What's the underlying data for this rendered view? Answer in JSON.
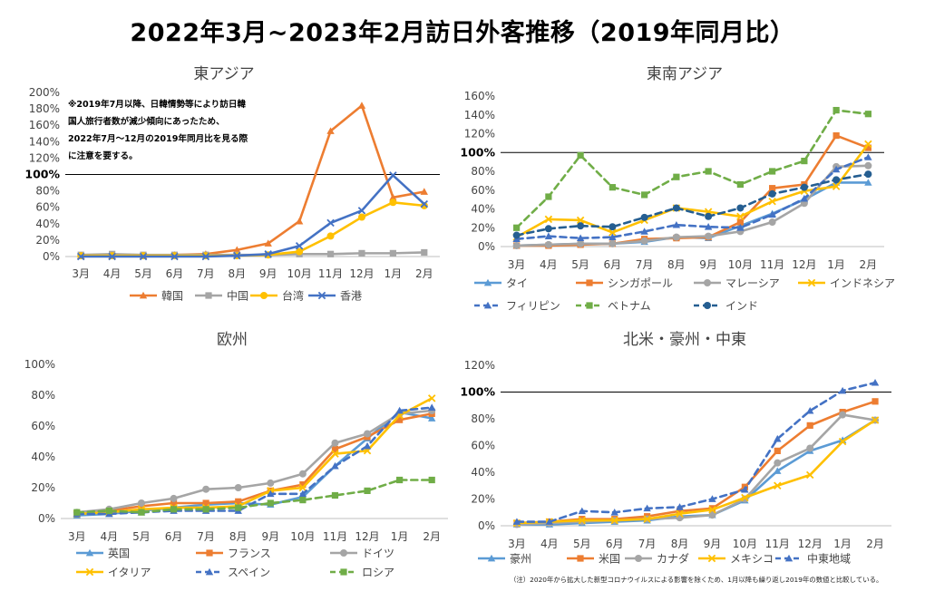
{
  "title": "2022年3月~2023年2月訪日外客推移（2019年同月比）",
  "footnote": "（注）2020年から拡大した新型コロナウイルスによる影響を除くため、1月以降も繰り返し2019年の数値と比較している。",
  "chart_data": [
    {
      "type": "line",
      "title": "東アジア",
      "categories": [
        "3月",
        "4月",
        "5月",
        "6月",
        "7月",
        "8月",
        "9月",
        "10月",
        "11月",
        "12月",
        "1月",
        "2月"
      ],
      "ylim": [
        0,
        200
      ],
      "yticks": [
        0,
        20,
        40,
        60,
        80,
        100,
        120,
        140,
        160,
        180,
        200
      ],
      "tick_labels": [
        "0%",
        "20%",
        "40%",
        "60%",
        "80%",
        "100%",
        "120%",
        "140%",
        "160%",
        "180%",
        "200%"
      ],
      "reference_line": 100,
      "legend_position": "bottom",
      "note_lines": [
        "※2019年7月以降、日韓情勢等により訪日韓",
        "国人旅行者数が減少傾向にあったため、",
        "2022年7月～12月の2019年同月比を見る際",
        "に注意を要する。"
      ],
      "series": [
        {
          "name": "韓国",
          "color": "#ED7D31",
          "marker": "triangle",
          "dash": false,
          "values": [
            1,
            1,
            1,
            2,
            3,
            8,
            16,
            43,
            153,
            184,
            72,
            79
          ]
        },
        {
          "name": "中国",
          "color": "#A5A5A5",
          "marker": "square",
          "dash": false,
          "values": [
            2,
            3,
            2,
            2,
            2,
            2,
            2,
            3,
            3,
            4,
            4,
            5
          ]
        },
        {
          "name": "台湾",
          "color": "#FFC000",
          "marker": "circle",
          "dash": false,
          "values": [
            1,
            1,
            1,
            1,
            1,
            1,
            2,
            6,
            25,
            48,
            66,
            62
          ]
        },
        {
          "name": "香港",
          "color": "#4472C4",
          "marker": "x",
          "dash": false,
          "values": [
            0,
            0,
            0,
            0,
            0,
            1,
            3,
            13,
            41,
            56,
            99,
            64
          ]
        }
      ]
    },
    {
      "type": "line",
      "title": "東南アジア",
      "categories": [
        "3月",
        "4月",
        "5月",
        "6月",
        "7月",
        "8月",
        "9月",
        "10月",
        "11月",
        "12月",
        "1月",
        "2月"
      ],
      "ylim": [
        0,
        160
      ],
      "yticks": [
        0,
        20,
        40,
        60,
        80,
        100,
        120,
        140,
        160
      ],
      "tick_labels": [
        "0%",
        "20%",
        "40%",
        "60%",
        "80%",
        "100%",
        "120%",
        "140%",
        "160%"
      ],
      "reference_line": 100,
      "legend_position": "bottom",
      "series": [
        {
          "name": "タイ",
          "color": "#5B9BD5",
          "marker": "triangle",
          "dash": false,
          "values": [
            1,
            2,
            3,
            3,
            5,
            10,
            9,
            22,
            35,
            50,
            68,
            68
          ]
        },
        {
          "name": "シンガポール",
          "color": "#ED7D31",
          "marker": "square",
          "dash": false,
          "values": [
            1,
            1,
            2,
            3,
            8,
            9,
            10,
            26,
            62,
            66,
            118,
            105
          ]
        },
        {
          "name": "マレーシア",
          "color": "#A5A5A5",
          "marker": "circle",
          "dash": false,
          "values": [
            1,
            2,
            3,
            3,
            6,
            10,
            11,
            16,
            26,
            46,
            85,
            86
          ]
        },
        {
          "name": "インドネシア",
          "color": "#FFC000",
          "marker": "x",
          "dash": false,
          "values": [
            10,
            29,
            28,
            15,
            28,
            41,
            37,
            32,
            48,
            59,
            64,
            109
          ]
        },
        {
          "name": "フィリピン",
          "color": "#4472C4",
          "marker": "triangle",
          "dash": true,
          "values": [
            8,
            11,
            9,
            10,
            16,
            23,
            21,
            20,
            34,
            51,
            82,
            95
          ]
        },
        {
          "name": "ベトナム",
          "color": "#70AD47",
          "marker": "square",
          "dash": true,
          "values": [
            20,
            53,
            97,
            63,
            55,
            74,
            80,
            66,
            80,
            91,
            145,
            141
          ]
        },
        {
          "name": "インド",
          "color": "#255E91",
          "marker": "circle",
          "dash": true,
          "values": [
            12,
            19,
            22,
            21,
            31,
            41,
            32,
            41,
            56,
            63,
            71,
            77
          ]
        }
      ]
    },
    {
      "type": "line",
      "title": "欧州",
      "categories": [
        "3月",
        "4月",
        "5月",
        "6月",
        "7月",
        "8月",
        "9月",
        "10月",
        "11月",
        "12月",
        "1月",
        "2月"
      ],
      "ylim": [
        0,
        100
      ],
      "yticks": [
        0,
        20,
        40,
        60,
        80,
        100
      ],
      "tick_labels": [
        "0%",
        "20%",
        "40%",
        "60%",
        "80%",
        "100%"
      ],
      "legend_position": "bottom",
      "series": [
        {
          "name": "英国",
          "color": "#5B9BD5",
          "marker": "triangle",
          "dash": false,
          "values": [
            2,
            3,
            5,
            7,
            9,
            10,
            9,
            14,
            34,
            52,
            69,
            65
          ]
        },
        {
          "name": "フランス",
          "color": "#ED7D31",
          "marker": "square",
          "dash": false,
          "values": [
            3,
            5,
            8,
            10,
            10,
            11,
            18,
            22,
            45,
            53,
            64,
            68
          ]
        },
        {
          "name": "ドイツ",
          "color": "#A5A5A5",
          "marker": "circle",
          "dash": false,
          "values": [
            4,
            6,
            10,
            13,
            19,
            20,
            23,
            29,
            49,
            55,
            68,
            70
          ]
        },
        {
          "name": "イタリア",
          "color": "#FFC000",
          "marker": "x",
          "dash": false,
          "values": [
            3,
            4,
            6,
            7,
            7,
            8,
            18,
            20,
            42,
            44,
            67,
            78
          ]
        },
        {
          "name": "スペイン",
          "color": "#4472C4",
          "marker": "triangle",
          "dash": true,
          "values": [
            3,
            3,
            4,
            5,
            5,
            5,
            16,
            16,
            34,
            47,
            70,
            72
          ]
        },
        {
          "name": "ロシア",
          "color": "#70AD47",
          "marker": "square",
          "dash": true,
          "values": [
            4,
            5,
            4,
            6,
            6,
            7,
            10,
            12,
            15,
            18,
            25,
            25
          ]
        }
      ]
    },
    {
      "type": "line",
      "title": "北米・豪州・中東",
      "categories": [
        "3月",
        "4月",
        "5月",
        "6月",
        "7月",
        "8月",
        "9月",
        "10月",
        "11月",
        "12月",
        "1月",
        "2月"
      ],
      "ylim": [
        0,
        120
      ],
      "yticks": [
        0,
        20,
        40,
        60,
        80,
        100,
        120
      ],
      "tick_labels": [
        "0%",
        "20%",
        "40%",
        "60%",
        "80%",
        "100%",
        "120%"
      ],
      "reference_line": 100,
      "legend_position": "bottom",
      "series": [
        {
          "name": "豪州",
          "color": "#5B9BD5",
          "marker": "triangle",
          "dash": false,
          "values": [
            1,
            1,
            2,
            3,
            4,
            7,
            8,
            19,
            41,
            56,
            64,
            79
          ]
        },
        {
          "name": "米国",
          "color": "#ED7D31",
          "marker": "square",
          "dash": false,
          "values": [
            2,
            3,
            5,
            5,
            7,
            11,
            13,
            29,
            56,
            75,
            85,
            93
          ]
        },
        {
          "name": "カナダ",
          "color": "#A5A5A5",
          "marker": "circle",
          "dash": false,
          "values": [
            1,
            2,
            3,
            4,
            5,
            6,
            8,
            20,
            47,
            58,
            83,
            79
          ]
        },
        {
          "name": "メキシコ",
          "color": "#FFC000",
          "marker": "x",
          "dash": false,
          "values": [
            2,
            3,
            4,
            4,
            5,
            9,
            12,
            21,
            30,
            38,
            63,
            79
          ]
        },
        {
          "name": "中東地域",
          "color": "#4472C4",
          "marker": "triangle",
          "dash": true,
          "values": [
            3,
            3,
            11,
            10,
            13,
            14,
            20,
            27,
            65,
            86,
            101,
            107
          ]
        }
      ]
    }
  ]
}
